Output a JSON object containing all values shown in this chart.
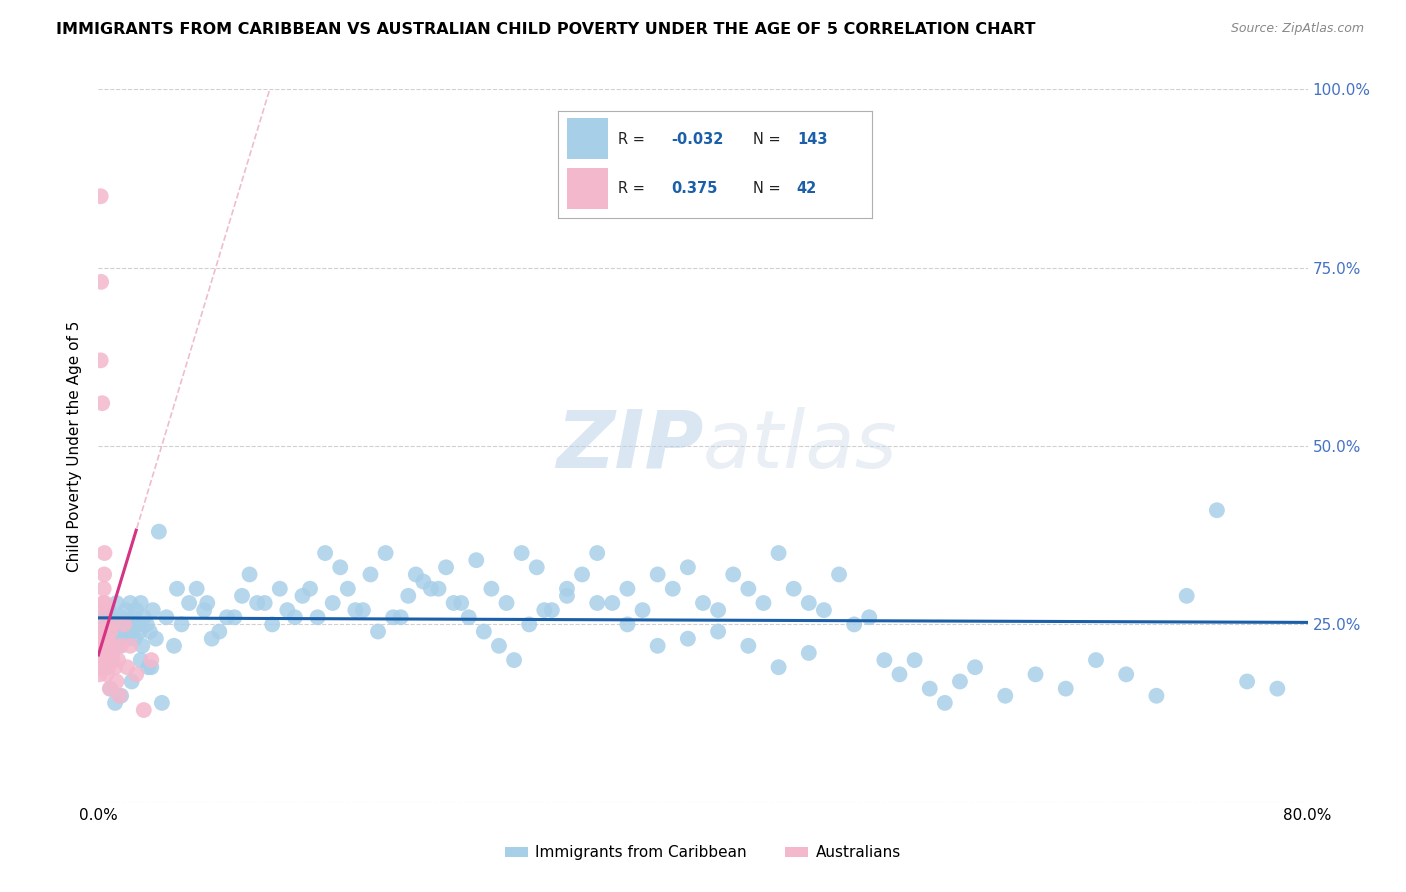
{
  "title": "IMMIGRANTS FROM CARIBBEAN VS AUSTRALIAN CHILD POVERTY UNDER THE AGE OF 5 CORRELATION CHART",
  "source": "Source: ZipAtlas.com",
  "ylabel": "Child Poverty Under the Age of 5",
  "xlim": [
    0,
    80
  ],
  "ylim": [
    0,
    100
  ],
  "legend_label1": "Immigrants from Caribbean",
  "legend_label2": "Australians",
  "r1": "-0.032",
  "n1": "143",
  "r2": "0.375",
  "n2": "42",
  "blue_color": "#a8cfe8",
  "pink_color": "#f4b8cc",
  "blue_line_color": "#1a5fa8",
  "pink_line_color": "#d63384",
  "pink_line_dash_color": "#e8a0bc",
  "watermark_zip": "ZIP",
  "watermark_atlas": "atlas",
  "grid_color": "#d0d0d0",
  "blue_x": [
    0.2,
    0.3,
    0.4,
    0.5,
    0.6,
    0.7,
    0.8,
    0.9,
    1.0,
    1.1,
    1.2,
    1.3,
    1.4,
    1.5,
    1.6,
    1.7,
    1.8,
    1.9,
    2.0,
    2.1,
    2.2,
    2.3,
    2.4,
    2.5,
    2.6,
    2.7,
    2.8,
    2.9,
    3.0,
    3.2,
    3.4,
    3.6,
    3.8,
    4.0,
    4.5,
    5.0,
    5.5,
    6.0,
    6.5,
    7.0,
    7.5,
    8.0,
    9.0,
    10.0,
    11.0,
    12.0,
    13.0,
    14.0,
    15.0,
    16.0,
    17.0,
    18.0,
    19.0,
    20.0,
    21.0,
    22.0,
    23.0,
    24.0,
    25.0,
    26.0,
    27.0,
    28.0,
    29.0,
    30.0,
    31.0,
    32.0,
    33.0,
    34.0,
    35.0,
    36.0,
    37.0,
    38.0,
    39.0,
    40.0,
    41.0,
    42.0,
    43.0,
    44.0,
    45.0,
    46.0,
    47.0,
    48.0,
    49.0,
    50.0,
    51.0,
    52.0,
    53.0,
    54.0,
    55.0,
    56.0,
    57.0,
    58.0,
    60.0,
    62.0,
    64.0,
    66.0,
    68.0,
    70.0,
    72.0,
    74.0,
    76.0,
    78.0,
    3.5,
    4.2,
    1.5,
    2.2,
    0.8,
    1.1,
    2.8,
    3.3,
    5.2,
    7.2,
    8.5,
    9.5,
    10.5,
    11.5,
    12.5,
    13.5,
    14.5,
    15.5,
    16.5,
    17.5,
    18.5,
    19.5,
    20.5,
    21.5,
    22.5,
    23.5,
    24.5,
    25.5,
    26.5,
    27.5,
    28.5,
    29.5,
    31.0,
    33.0,
    35.0,
    37.0,
    39.0,
    41.0,
    43.0,
    45.0,
    47.0,
    49.0,
    51.0,
    53.0
  ],
  "blue_y": [
    23,
    26,
    24,
    22,
    25,
    27,
    24,
    26,
    23,
    25,
    28,
    24,
    22,
    26,
    25,
    24,
    27,
    23,
    25,
    28,
    24,
    26,
    23,
    27,
    25,
    24,
    28,
    22,
    26,
    25,
    24,
    27,
    23,
    38,
    26,
    22,
    25,
    28,
    30,
    27,
    23,
    24,
    26,
    32,
    28,
    30,
    26,
    30,
    35,
    33,
    27,
    32,
    35,
    26,
    32,
    30,
    33,
    28,
    34,
    30,
    28,
    35,
    33,
    27,
    30,
    32,
    35,
    28,
    30,
    27,
    32,
    30,
    33,
    28,
    27,
    32,
    30,
    28,
    35,
    30,
    28,
    27,
    32,
    25,
    26,
    20,
    18,
    20,
    16,
    14,
    17,
    19,
    15,
    18,
    16,
    20,
    18,
    15,
    29,
    41,
    17,
    16,
    19,
    14,
    15,
    17,
    16,
    14,
    20,
    19,
    30,
    28,
    26,
    29,
    28,
    25,
    27,
    29,
    26,
    28,
    30,
    27,
    24,
    26,
    29,
    31,
    30,
    28,
    26,
    24,
    22,
    20,
    25,
    27,
    29,
    28,
    25,
    22,
    23,
    24,
    22,
    19,
    21,
    18
  ],
  "pink_x": [
    0.05,
    0.08,
    0.1,
    0.12,
    0.15,
    0.18,
    0.2,
    0.22,
    0.25,
    0.28,
    0.3,
    0.32,
    0.35,
    0.38,
    0.4,
    0.42,
    0.45,
    0.48,
    0.5,
    0.55,
    0.6,
    0.65,
    0.7,
    0.75,
    0.8,
    0.85,
    0.9,
    0.95,
    1.0,
    1.1,
    1.2,
    1.3,
    1.4,
    1.5,
    1.7,
    1.9,
    2.1,
    2.5,
    3.0,
    3.5,
    0.15,
    0.25
  ],
  "pink_y": [
    20,
    18,
    22,
    19,
    85,
    73,
    23,
    22,
    24,
    27,
    25,
    28,
    30,
    32,
    35,
    28,
    22,
    21,
    20,
    18,
    23,
    19,
    22,
    16,
    24,
    25,
    21,
    20,
    22,
    19,
    17,
    20,
    15,
    22,
    25,
    19,
    22,
    18,
    13,
    20,
    62,
    56
  ]
}
